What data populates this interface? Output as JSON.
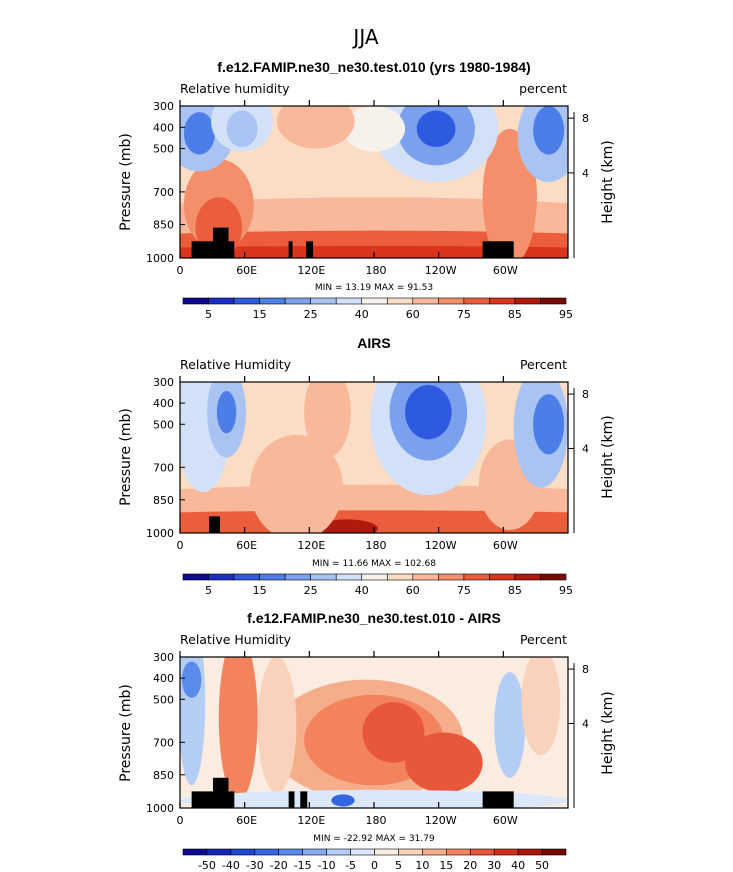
{
  "title": "JJA",
  "chart_data": [
    {
      "type": "heatmap",
      "title": "f.e12.FAMIP.ne30_ne30.test.010 (yrs 1980-1984)",
      "left_label": "Relative humidity",
      "right_label": "percent",
      "ylabel": "Pressure (mb)",
      "ylabel_right": "Height (km)",
      "yticks": [
        "300",
        "400",
        "500",
        "700",
        "850",
        "1000"
      ],
      "yticks_right": [
        "8",
        "4"
      ],
      "xticks": [
        "0",
        "60E",
        "120E",
        "180",
        "120W",
        "60W"
      ],
      "stats": "MIN =   13.19   MAX =   91.53",
      "colorbar_labels": [
        "5",
        "15",
        "25",
        "40",
        "60",
        "75",
        "85",
        "95"
      ],
      "colors": [
        "#0b0a8e",
        "#1c2fc4",
        "#2e5ae0",
        "#4d7ee8",
        "#7aa0ee",
        "#a9c3f3",
        "#d2e0f8",
        "#f6f1ea",
        "#fbdcc5",
        "#f8b899",
        "#f48f6b",
        "#ec5e3b",
        "#d9341c",
        "#b01a0c",
        "#7a0b04"
      ],
      "background": 8
    },
    {
      "type": "heatmap",
      "title": "AIRS",
      "left_label": "Relative Humidity",
      "right_label": "Percent",
      "ylabel": "Pressure (mb)",
      "ylabel_right": "Height (km)",
      "yticks": [
        "300",
        "400",
        "500",
        "700",
        "850",
        "1000"
      ],
      "yticks_right": [
        "8",
        "4"
      ],
      "xticks": [
        "0",
        "60E",
        "120E",
        "180",
        "120W",
        "60W"
      ],
      "stats": "MIN =   11.66   MAX =  102.68",
      "colorbar_labels": [
        "5",
        "15",
        "25",
        "40",
        "60",
        "75",
        "85",
        "95"
      ],
      "colors": [
        "#0b0a8e",
        "#1c2fc4",
        "#2e5ae0",
        "#4d7ee8",
        "#7aa0ee",
        "#a9c3f3",
        "#d2e0f8",
        "#f6f1ea",
        "#fbdcc5",
        "#f8b899",
        "#f48f6b",
        "#ec5e3b",
        "#d9341c",
        "#b01a0c",
        "#7a0b04"
      ],
      "background": 8
    },
    {
      "type": "heatmap",
      "title": "f.e12.FAMIP.ne30_ne30.test.010 - AIRS",
      "left_label": "Relative Humidity",
      "right_label": "Percent",
      "ylabel": "Pressure (mb)",
      "ylabel_right": "Height (km)",
      "yticks": [
        "300",
        "400",
        "500",
        "700",
        "850",
        "1000"
      ],
      "yticks_right": [
        "8",
        "4"
      ],
      "xticks": [
        "0",
        "60E",
        "120E",
        "180",
        "120W",
        "60W"
      ],
      "stats": "MIN =  -22.92   MAX =   31.79",
      "colorbar_labels": [
        "-50",
        "-40",
        "-30",
        "-20",
        "-15",
        "-10",
        "-5",
        "0",
        "5",
        "10",
        "15",
        "20",
        "30",
        "40",
        "50"
      ],
      "colors": [
        "#0b0a8e",
        "#1426b6",
        "#2146d4",
        "#3466e2",
        "#5a8aea",
        "#86abf0",
        "#b4cdf5",
        "#dbe7fa",
        "#fbece2",
        "#f9d2bb",
        "#f6ad8c",
        "#f2835c",
        "#e9573a",
        "#d22f1b",
        "#a9170a",
        "#740a04"
      ],
      "background": 8
    }
  ]
}
